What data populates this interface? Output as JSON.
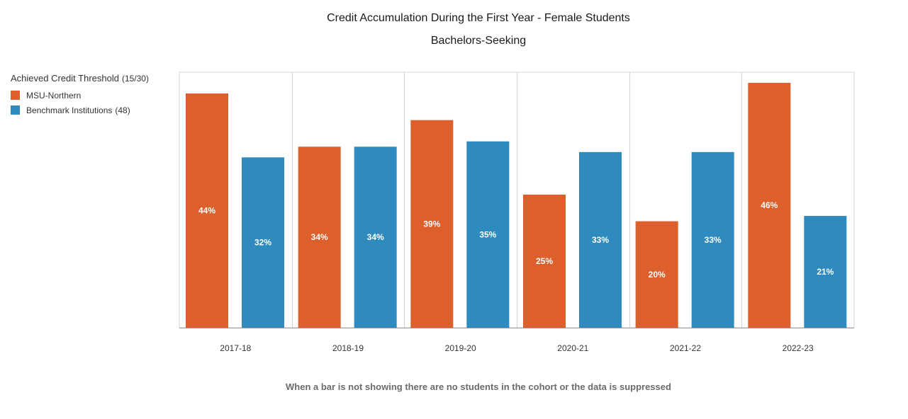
{
  "chart_data": {
    "type": "bar",
    "title": "Credit Accumulation During the First Year - Female Students",
    "subtitle": "Bachelors-Seeking",
    "categories": [
      "2017-18",
      "2018-19",
      "2019-20",
      "2020-21",
      "2021-22",
      "2022-23"
    ],
    "series": [
      {
        "name": "MSU-Northern",
        "color": "#dd5f2c",
        "values": [
          44,
          34,
          39,
          25,
          20,
          46
        ],
        "labels": [
          "44%",
          "34%",
          "39%",
          "25%",
          "20%",
          "46%"
        ]
      },
      {
        "name": "Benchmark Institutions",
        "count_label": "(48)",
        "color": "#2f8abe",
        "values": [
          32,
          34,
          35,
          33,
          33,
          21
        ],
        "labels": [
          "32%",
          "34%",
          "35%",
          "33%",
          "33%",
          "21%"
        ]
      }
    ],
    "ylim": [
      0,
      48
    ],
    "xlabel": "",
    "ylabel": "",
    "grid": true,
    "legend": {
      "title": "Achieved Credit Threshold",
      "subtitle": "(15/30)",
      "position": "left"
    },
    "footnote": "When a bar is not showing there are no students in the cohort or the data is suppressed"
  }
}
